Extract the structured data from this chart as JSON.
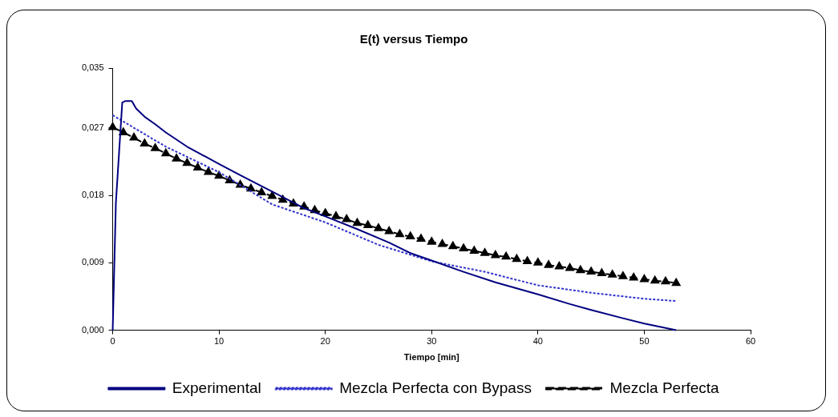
{
  "chart_data": {
    "type": "line",
    "title": "E(t) versus Tiempo",
    "xlabel": "Tiempo [min]",
    "xlim": [
      0,
      60
    ],
    "xticks": [
      0,
      10,
      20,
      30,
      40,
      50,
      60
    ],
    "ylim": [
      0,
      0.035
    ],
    "yticks": [
      {
        "value": 0,
        "label": "0,000"
      },
      {
        "value": 0.009,
        "label": "0,009"
      },
      {
        "value": 0.018,
        "label": "0,018"
      },
      {
        "value": 0.027,
        "label": "0,027"
      },
      {
        "value": 0.035,
        "label": "0,035"
      }
    ],
    "grid": false,
    "legend": "bottom",
    "series": [
      {
        "name": "Experimental",
        "color": "#000080",
        "line_style": "solid",
        "marker": "none",
        "x": [
          0,
          0.3,
          0.9,
          1.2,
          1.8,
          2.2,
          3,
          4,
          5,
          7,
          10,
          12,
          15,
          18,
          20,
          23,
          26,
          28,
          30,
          33,
          36,
          40,
          43,
          45,
          48,
          50,
          52,
          53
        ],
        "values": [
          0,
          0.017,
          0.0304,
          0.0306,
          0.0306,
          0.0296,
          0.0285,
          0.0275,
          0.0264,
          0.0245,
          0.0222,
          0.0207,
          0.0185,
          0.0163,
          0.0152,
          0.0135,
          0.0117,
          0.0103,
          0.0093,
          0.0078,
          0.0064,
          0.0048,
          0.0035,
          0.0027,
          0.0016,
          0.0009,
          0.0003,
          0
        ]
      },
      {
        "name": "Mezcla Perfecta con Bypass",
        "color": "#3333cc",
        "line_style": "dotted",
        "marker": "none",
        "x": [
          0,
          5,
          10,
          15,
          20,
          25,
          30,
          35,
          40,
          45,
          50,
          53
        ],
        "values": [
          0.0287,
          0.0245,
          0.0211,
          0.0168,
          0.0144,
          0.0114,
          0.0092,
          0.0078,
          0.006,
          0.005,
          0.0042,
          0.0039
        ]
      },
      {
        "name": "Mezcla Perfecta",
        "color": "#000000",
        "line_style": "dashed",
        "marker": "triangle",
        "x": [
          0,
          1,
          2,
          3,
          4,
          5,
          6,
          7,
          8,
          9,
          10,
          11,
          12,
          13,
          14,
          15,
          16,
          17,
          18,
          19,
          20,
          21,
          22,
          23,
          24,
          25,
          26,
          27,
          28,
          29,
          30,
          31,
          32,
          33,
          34,
          35,
          36,
          37,
          38,
          39,
          40,
          41,
          42,
          43,
          44,
          45,
          46,
          47,
          48,
          49,
          50,
          51,
          52,
          53
        ],
        "values": [
          0.0271,
          0.0264,
          0.0257,
          0.0249,
          0.0243,
          0.0236,
          0.0229,
          0.0223,
          0.0217,
          0.0211,
          0.0206,
          0.02,
          0.0194,
          0.0189,
          0.0184,
          0.0179,
          0.0174,
          0.0169,
          0.0165,
          0.016,
          0.0156,
          0.0152,
          0.0148,
          0.0143,
          0.014,
          0.0136,
          0.0132,
          0.0128,
          0.0125,
          0.0122,
          0.0118,
          0.0115,
          0.0112,
          0.0109,
          0.0106,
          0.0103,
          0.01,
          0.0098,
          0.0095,
          0.0092,
          0.009,
          0.0087,
          0.0085,
          0.0083,
          0.008,
          0.0078,
          0.0076,
          0.0074,
          0.0072,
          0.007,
          0.0068,
          0.0066,
          0.0065,
          0.0063
        ]
      }
    ]
  }
}
